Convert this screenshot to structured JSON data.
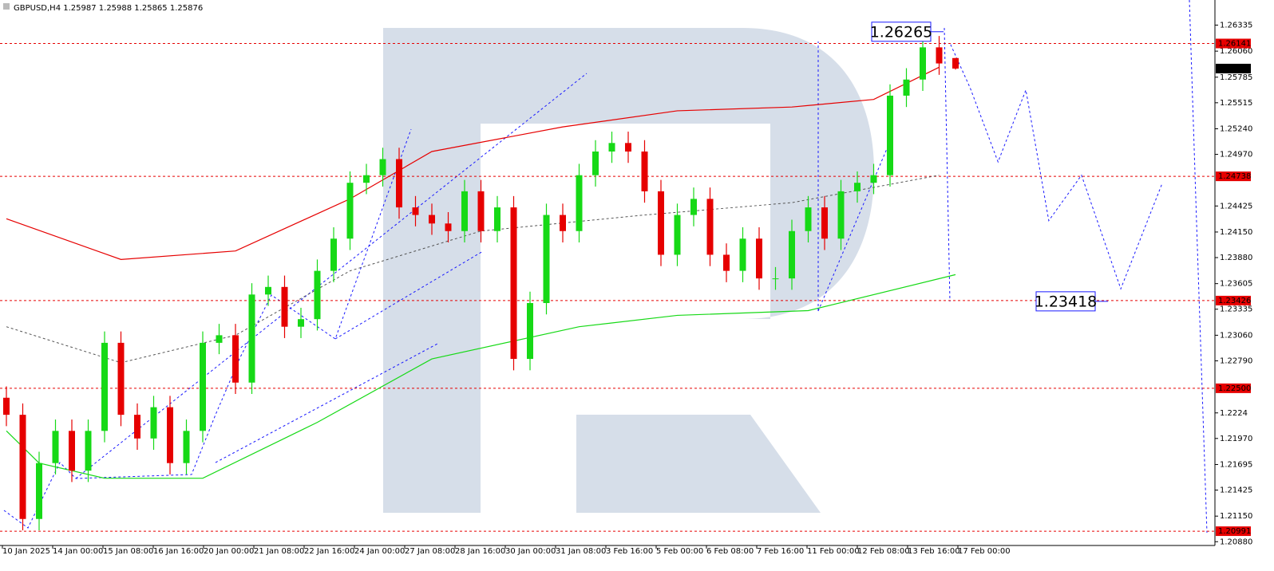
{
  "chart_data": {
    "type": "candlestick",
    "title": "GBPUSD,H4  1.25987 1.25988 1.25865 1.25876",
    "ylim": [
      1.2084,
      1.266
    ],
    "yticks": [
      1.26335,
      {
        "value": 1.2606,
        "label": "1.26060"
      },
      1.25785,
      1.25515,
      {
        "value": 1.2524,
        "label": "1.25240"
      },
      {
        "value": 1.2497,
        "label": "1.24970"
      },
      1.24425,
      {
        "value": 1.2415,
        "label": "1.24150"
      },
      {
        "value": 1.2388,
        "label": "1.23880"
      },
      1.23605,
      1.23335,
      {
        "value": 1.2306,
        "label": "1.23060"
      },
      {
        "value": 1.2279,
        "label": "1.22790"
      },
      1.2224,
      {
        "value": 1.2197,
        "label": "1.21970"
      },
      1.21695,
      1.21425,
      {
        "value": 1.2115,
        "label": "1.21150"
      },
      {
        "value": 1.2088,
        "label": "1.20880"
      }
    ],
    "time_labels": [
      "10 Jan 2025",
      "14 Jan 00:00",
      "15 Jan 08:00",
      "16 Jan 16:00",
      "20 Jan 00:00",
      "21 Jan 08:00",
      "22 Jan 16:00",
      "24 Jan 00:00",
      "27 Jan 08:00",
      "28 Jan 16:00",
      "30 Jan 00:00",
      "31 Jan 08:00",
      "3 Feb 16:00",
      "5 Feb 00:00",
      "6 Feb 08:00",
      "7 Feb 16:00",
      "11 Feb 00:00",
      "12 Feb 08:00",
      "13 Feb 16:00",
      "17 Feb 00:00"
    ],
    "bull_color": "#16d916",
    "bear_color": "#e60000",
    "candles": {
      "open": [
        1.224,
        1.2222,
        1.2112,
        1.2171,
        1.2205,
        1.2163,
        1.2205,
        1.2298,
        1.2222,
        1.2197,
        1.223,
        1.2171,
        1.2205,
        1.2298,
        1.2306,
        1.2256,
        1.2349,
        1.2357,
        1.2315,
        1.2323,
        1.2374,
        1.2408,
        1.2467,
        1.2475,
        1.2492,
        1.2441,
        1.2433,
        1.2424,
        1.2416,
        1.2458,
        1.2416,
        1.2441,
        1.2281,
        1.234,
        1.2433,
        1.2416,
        1.2475,
        1.25,
        1.2509,
        1.25,
        1.2458,
        1.2391,
        1.2433,
        1.245,
        1.2391,
        1.2374,
        1.2408,
        1.2366,
        1.2366,
        1.2416,
        1.2441,
        1.2408,
        1.2458,
        1.2467,
        1.2475,
        1.2559,
        1.2576,
        1.261,
        1.25987
      ],
      "high": [
        1.2252,
        1.2234,
        1.2183,
        1.2217,
        1.2217,
        1.2217,
        1.231,
        1.231,
        1.2234,
        1.2242,
        1.2242,
        1.2217,
        1.231,
        1.2318,
        1.2318,
        1.2361,
        1.2369,
        1.2369,
        1.2335,
        1.2386,
        1.242,
        1.2479,
        1.2487,
        1.2504,
        1.2504,
        1.2453,
        1.2445,
        1.2436,
        1.247,
        1.247,
        1.2453,
        1.2453,
        1.2352,
        1.2445,
        1.2445,
        1.2487,
        1.2512,
        1.2521,
        1.2521,
        1.2512,
        1.247,
        1.2445,
        1.2462,
        1.2462,
        1.2403,
        1.242,
        1.242,
        1.2378,
        1.2428,
        1.2453,
        1.2453,
        1.247,
        1.2479,
        1.2487,
        1.2571,
        1.2588,
        1.2627,
        1.2622,
        1.25988
      ],
      "low": [
        1.221,
        1.21,
        1.21,
        1.2159,
        1.2151,
        1.2151,
        1.2193,
        1.221,
        1.2185,
        1.2185,
        1.2159,
        1.2159,
        1.2193,
        1.2286,
        1.2244,
        1.2244,
        1.2337,
        1.2303,
        1.2303,
        1.2311,
        1.2362,
        1.2396,
        1.2455,
        1.2463,
        1.2429,
        1.2421,
        1.2412,
        1.2404,
        1.2404,
        1.2404,
        1.2404,
        1.2269,
        1.2269,
        1.2328,
        1.2404,
        1.2404,
        1.2463,
        1.2488,
        1.2488,
        1.2446,
        1.2379,
        1.2379,
        1.2421,
        1.2379,
        1.2362,
        1.2362,
        1.2354,
        1.2354,
        1.2354,
        1.2404,
        1.2396,
        1.2396,
        1.2446,
        1.2455,
        1.2463,
        1.2547,
        1.2564,
        1.2581,
        1.25865
      ],
      "close": [
        1.2222,
        1.2112,
        1.2171,
        1.2205,
        1.2163,
        1.2205,
        1.2298,
        1.2222,
        1.2197,
        1.223,
        1.2171,
        1.2205,
        1.2298,
        1.2306,
        1.2256,
        1.2349,
        1.2357,
        1.2315,
        1.2323,
        1.2374,
        1.2408,
        1.2467,
        1.2475,
        1.2492,
        1.2441,
        1.2433,
        1.2424,
        1.2416,
        1.2458,
        1.2416,
        1.2441,
        1.2281,
        1.234,
        1.2433,
        1.2416,
        1.2475,
        1.25,
        1.2509,
        1.25,
        1.2458,
        1.2391,
        1.2433,
        1.245,
        1.2391,
        1.2374,
        1.2408,
        1.2366,
        1.2366,
        1.2416,
        1.2441,
        1.2408,
        1.2458,
        1.2467,
        1.2475,
        1.2559,
        1.2576,
        1.261,
        1.2593,
        1.25876
      ]
    },
    "overlays": [
      {
        "color": "#e60000",
        "dash": false,
        "x": [
          0,
          7,
          14,
          21,
          26,
          34,
          41,
          48,
          53,
          57
        ],
        "values": [
          1.2429,
          1.2386,
          1.2395,
          1.245,
          1.25,
          1.2526,
          1.2543,
          1.2547,
          1.2555,
          1.2589
        ]
      },
      {
        "color": "#16d916",
        "dash": false,
        "x": [
          0,
          2,
          6,
          12,
          19,
          26,
          35,
          41,
          49,
          58
        ],
        "values": [
          1.2205,
          1.2171,
          1.2155,
          1.2155,
          1.2214,
          1.2281,
          1.2315,
          1.2327,
          1.2332,
          1.237
        ]
      },
      {
        "color": "#555555",
        "dash": true,
        "x": [
          0,
          7,
          14,
          21,
          29,
          39,
          48,
          57
        ],
        "values": [
          1.2315,
          1.2277,
          1.2306,
          1.2374,
          1.2416,
          1.2433,
          1.2446,
          1.2475
        ]
      },
      {
        "color": "#1a1aff",
        "dash": true,
        "x": [
          57.7,
          58.9,
          60.6,
          62.3,
          63.7,
          65.7,
          68.1,
          70.6
        ],
        "values": [
          1.2613,
          1.2567,
          1.2489,
          1.2565,
          1.2427,
          1.2475,
          1.2355,
          1.2465
        ]
      }
    ],
    "price_levels": [
      {
        "value": 1.26141,
        "color": "#e60000",
        "line": true
      },
      {
        "value": 1.25876,
        "color": "#000000",
        "line": false
      },
      {
        "value": 1.24738,
        "color": "#e60000",
        "line": true
      },
      {
        "value": 1.23426,
        "color": "#e60000",
        "line": true
      },
      {
        "value": 1.225,
        "label": "1.22500",
        "color": "#e60000",
        "line": true
      },
      {
        "value": 1.20991,
        "color": "#e60000",
        "line": true
      }
    ],
    "annotations": [
      1.26265,
      1.23418
    ]
  }
}
